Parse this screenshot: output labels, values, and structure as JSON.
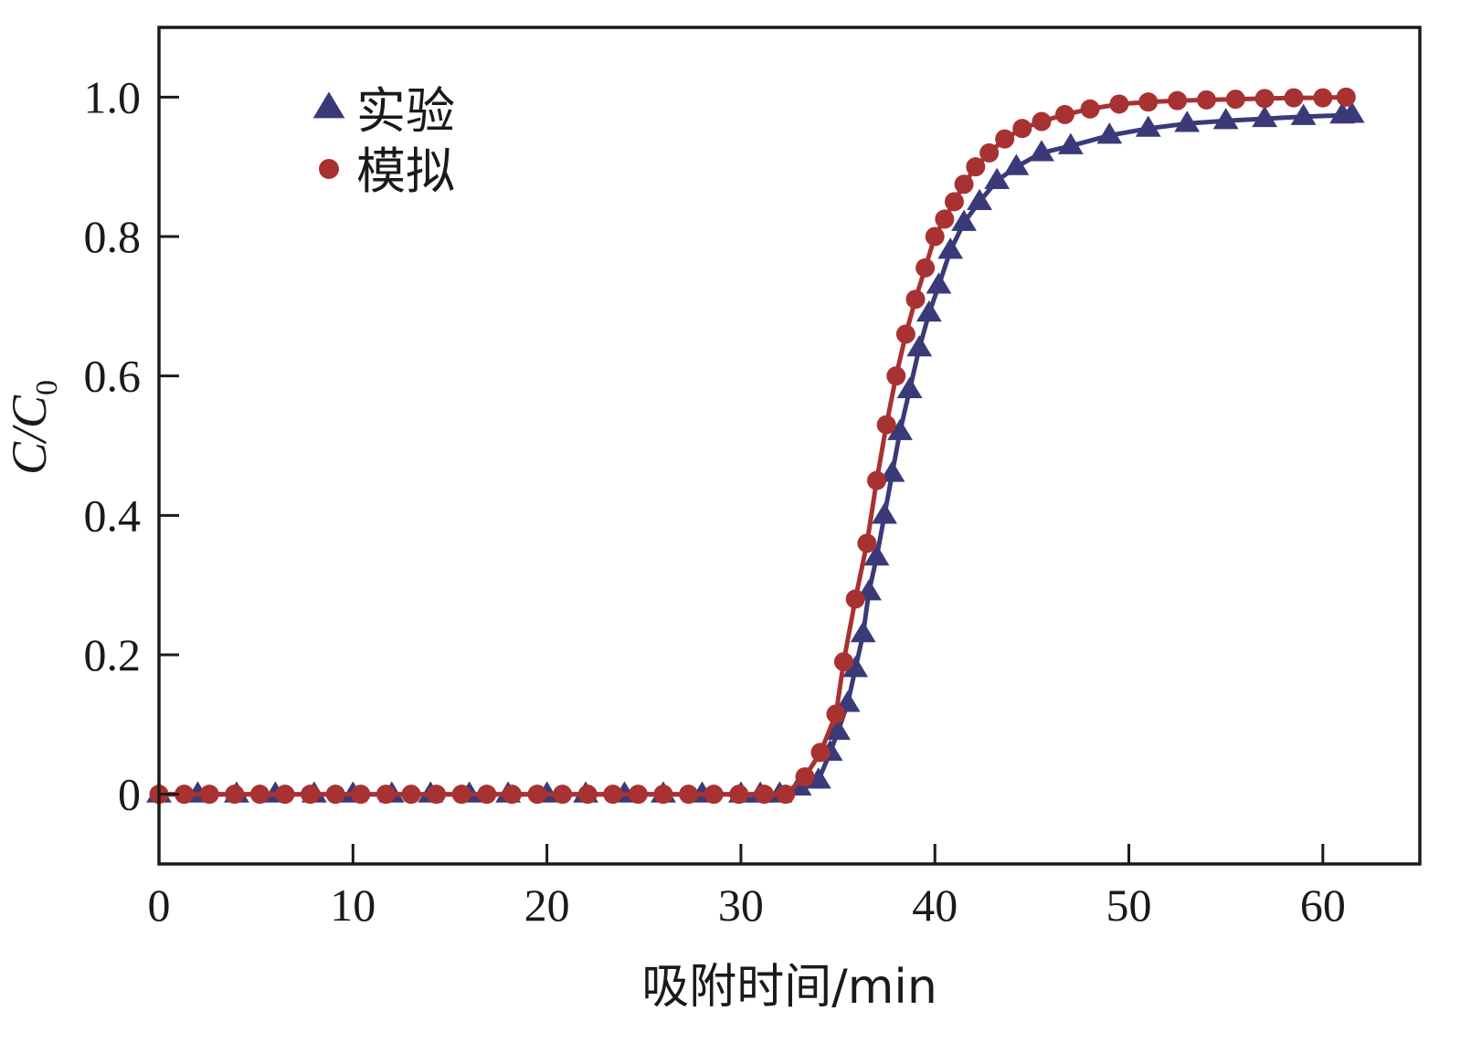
{
  "chart_data": {
    "type": "line",
    "xlabel": "吸附时间/min",
    "ylabel": {
      "main": "C/C",
      "sub": "0"
    },
    "xlim": [
      0,
      65
    ],
    "ylim": [
      -0.1,
      1.1
    ],
    "xticks": [
      0,
      10,
      20,
      30,
      40,
      50,
      60
    ],
    "xtick_labels": [
      "0",
      "10",
      "20",
      "30",
      "40",
      "50",
      "60"
    ],
    "yticks": [
      0,
      0.2,
      0.4,
      0.6,
      0.8,
      1.0
    ],
    "ytick_labels": [
      "0",
      "0.2",
      "0.4",
      "0.6",
      "0.8",
      "1.0"
    ],
    "grid": false,
    "legend_position": "top-left",
    "series": [
      {
        "name": "实验",
        "marker": "triangle",
        "color": "#3a3a78",
        "x": [
          0,
          2,
          4,
          6,
          8,
          10,
          12,
          14,
          16,
          18,
          20,
          22,
          24,
          26,
          28,
          30,
          31,
          32,
          33,
          34,
          34.6,
          35.0,
          35.5,
          35.9,
          36.3,
          36.6,
          37.0,
          37.4,
          37.8,
          38.2,
          38.7,
          39.2,
          39.7,
          40.2,
          40.8,
          41.5,
          42.3,
          43.2,
          44.2,
          45.5,
          47,
          49,
          51,
          53,
          55,
          57,
          59,
          61,
          61.5
        ],
        "y": [
          0,
          0,
          0,
          0,
          0,
          0,
          0,
          0,
          0,
          0,
          0,
          0,
          0,
          0,
          0,
          0,
          0,
          0,
          0.01,
          0.02,
          0.06,
          0.09,
          0.13,
          0.18,
          0.23,
          0.29,
          0.34,
          0.4,
          0.46,
          0.52,
          0.58,
          0.64,
          0.69,
          0.73,
          0.78,
          0.82,
          0.85,
          0.88,
          0.9,
          0.92,
          0.93,
          0.945,
          0.955,
          0.962,
          0.966,
          0.969,
          0.972,
          0.974,
          0.975
        ]
      },
      {
        "name": "模拟",
        "marker": "circle",
        "color": "#a83232",
        "x": [
          0,
          1.3,
          2.6,
          3.9,
          5.2,
          6.5,
          7.8,
          9.1,
          10.4,
          11.7,
          13.0,
          14.3,
          15.6,
          16.9,
          18.2,
          19.5,
          20.8,
          22.1,
          23.4,
          24.7,
          26.0,
          27.3,
          28.6,
          29.9,
          31.2,
          32.3,
          33.3,
          34.1,
          34.9,
          35.3,
          35.9,
          36.5,
          37.0,
          37.5,
          38.0,
          38.5,
          39.0,
          39.5,
          40.0,
          40.5,
          41.0,
          41.5,
          42.1,
          42.8,
          43.6,
          44.5,
          45.5,
          46.7,
          48.0,
          49.5,
          51.0,
          52.5,
          54.0,
          55.5,
          57.0,
          58.5,
          60.0,
          61.2
        ],
        "y": [
          0,
          0,
          0,
          0,
          0,
          0,
          0,
          0,
          0,
          0,
          0,
          0,
          0,
          0,
          0,
          0,
          0,
          0,
          0,
          0,
          0,
          0,
          0,
          0,
          0,
          0,
          0.025,
          0.06,
          0.115,
          0.19,
          0.28,
          0.36,
          0.45,
          0.53,
          0.6,
          0.66,
          0.71,
          0.755,
          0.8,
          0.825,
          0.85,
          0.875,
          0.9,
          0.92,
          0.94,
          0.955,
          0.965,
          0.975,
          0.983,
          0.99,
          0.993,
          0.995,
          0.996,
          0.997,
          0.998,
          0.999,
          0.999,
          1.0
        ]
      }
    ]
  }
}
